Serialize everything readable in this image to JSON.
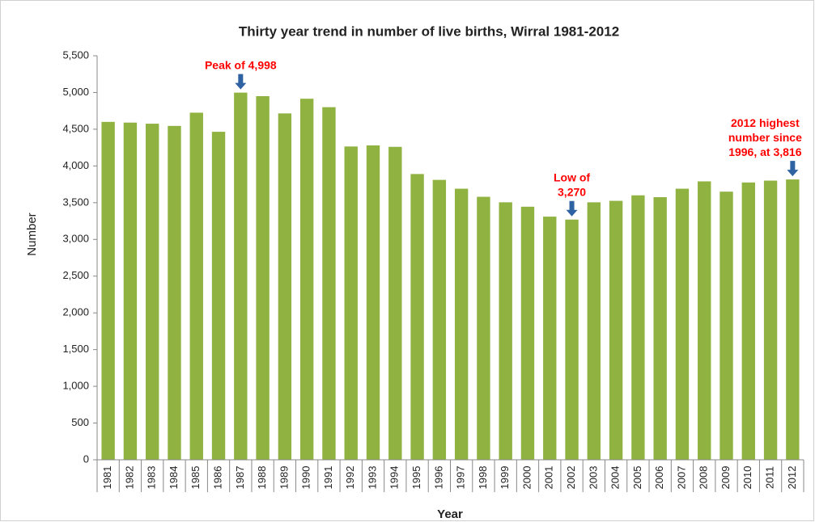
{
  "chart_data": {
    "type": "bar",
    "title": "Thirty year trend in number of live births, Wirral 1981-2012",
    "x_label": "Year",
    "y_label": "Number",
    "categories": [
      "1981",
      "1982",
      "1983",
      "1984",
      "1985",
      "1986",
      "1987",
      "1988",
      "1989",
      "1990",
      "1991",
      "1992",
      "1993",
      "1994",
      "1995",
      "1996",
      "1997",
      "1998",
      "1999",
      "2000",
      "2001",
      "2002",
      "2003",
      "2004",
      "2005",
      "2006",
      "2007",
      "2008",
      "2009",
      "2010",
      "2011",
      "2012"
    ],
    "values": [
      4600,
      4590,
      4575,
      4545,
      4725,
      4465,
      4998,
      4950,
      4715,
      4915,
      4800,
      4265,
      4280,
      4260,
      3890,
      3810,
      3690,
      3580,
      3505,
      3445,
      3310,
      3270,
      3505,
      3525,
      3600,
      3575,
      3690,
      3790,
      3650,
      3775,
      3800,
      3816
    ],
    "color": "#8fb240",
    "ylim": [
      0,
      5500
    ],
    "yticks": [
      0,
      500,
      {
        "value": 1000,
        "label": "1,000"
      },
      {
        "value": 1500,
        "label": "1,500"
      },
      {
        "value": 2000,
        "label": "2,000"
      },
      {
        "value": 2500,
        "label": "2,500"
      },
      {
        "value": 3000,
        "label": "3,000"
      },
      {
        "value": 3500,
        "label": "3,500"
      },
      {
        "value": 4000,
        "label": "4,000"
      },
      {
        "value": 4500,
        "label": "4,500"
      },
      {
        "value": 5000,
        "label": "5,000"
      },
      {
        "value": 5500,
        "label": "5,500"
      }
    ],
    "grid": false,
    "annotations": [
      {
        "lines": [
          "Peak of 4,998"
        ],
        "category": "1987"
      },
      {
        "lines": [
          "Low of",
          "3,270"
        ],
        "category": "2002"
      },
      {
        "lines": [
          "2012 highest",
          "number since",
          "1996, at 3,816"
        ],
        "category": "2012"
      }
    ],
    "annotation_color": "#ff0000",
    "arrow_color": "#2f62a3"
  }
}
